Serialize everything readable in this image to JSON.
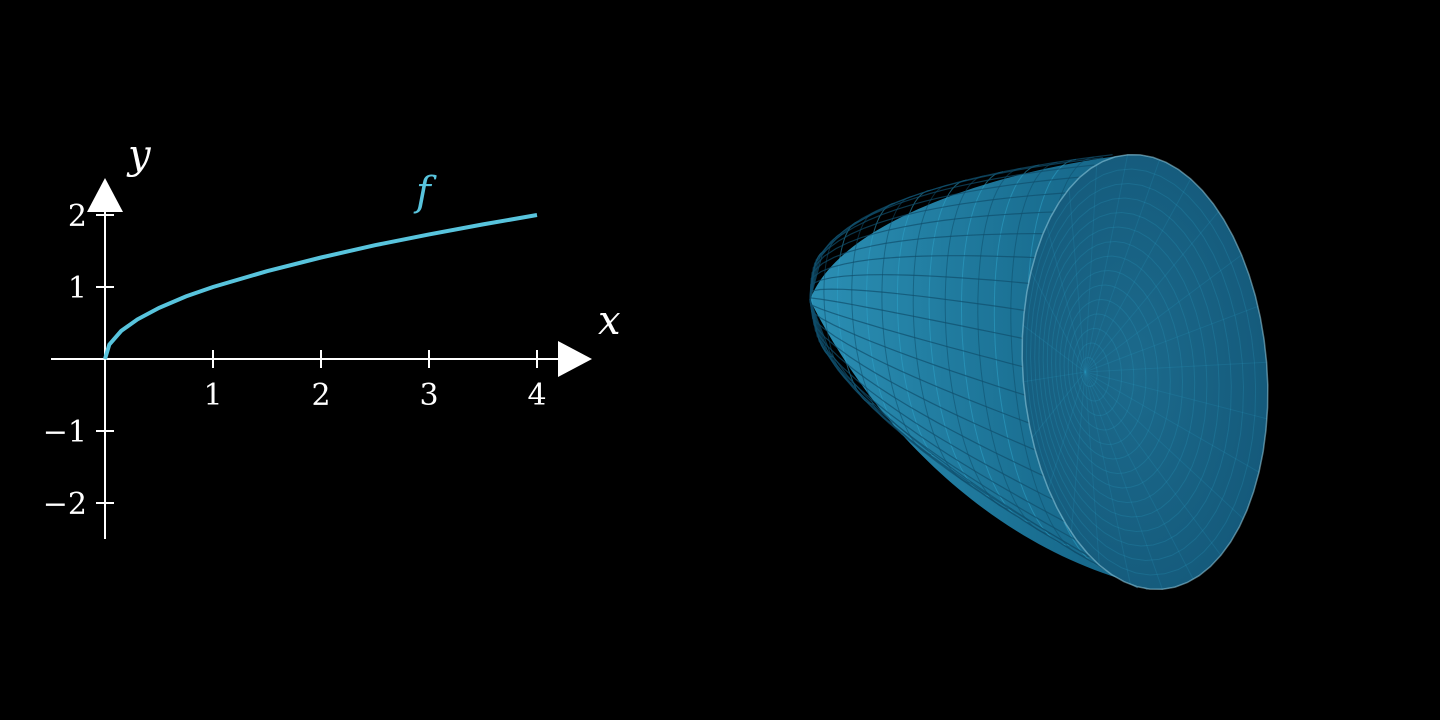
{
  "colors": {
    "background": "#000000",
    "axis": "#ffffff",
    "curve": "#58c4dd",
    "surface_dark": "#0f4f6c",
    "surface_mid": "#1a6f92",
    "surface_light": "#2ea3c8",
    "surface_edge": "#9fd8ea"
  },
  "chart_data": [
    {
      "type": "line",
      "function": "sqrt(x)",
      "xlim": [
        -0.5,
        4.5
      ],
      "ylim": [
        -2.5,
        2.5
      ],
      "xticks": [
        1,
        2,
        3,
        4
      ],
      "yticks": [
        -2,
        -1,
        1,
        2
      ],
      "xtick_labels": [
        "1",
        "2",
        "3",
        "4"
      ],
      "ytick_labels": [
        "−2",
        "−1",
        "1",
        "2"
      ],
      "xlabel": "x",
      "ylabel": "y",
      "grid": false,
      "series": [
        {
          "name": "f",
          "x": [
            0,
            0.04,
            0.15,
            0.3,
            0.5,
            0.75,
            1,
            1.5,
            2,
            2.5,
            3,
            3.5,
            4
          ],
          "y": [
            0,
            0.2,
            0.39,
            0.55,
            0.71,
            0.87,
            1,
            1.22,
            1.41,
            1.58,
            1.73,
            1.87,
            2
          ]
        }
      ]
    },
    {
      "type": "surface",
      "shape": "paraboloid of revolution of f about the x-axis",
      "x_range": [
        0,
        4
      ]
    }
  ]
}
